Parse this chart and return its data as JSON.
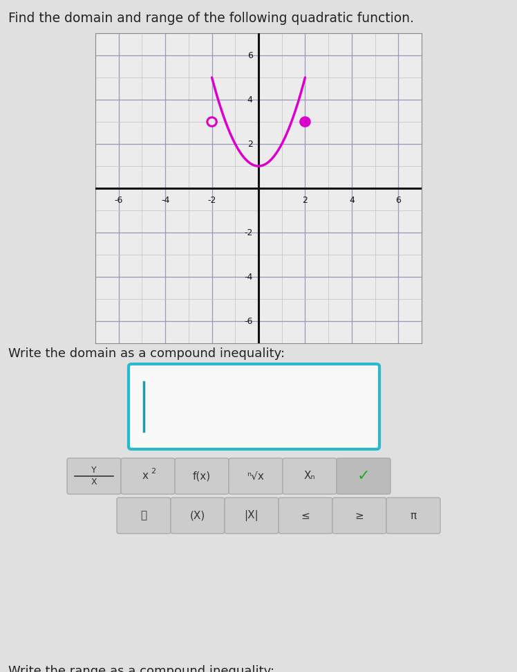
{
  "title": "Find the domain and range of the following quadratic function.",
  "title_fontsize": 13.5,
  "title_color": "#222222",
  "bg_color": "#e0e0e0",
  "graph_bg_color": "#ececec",
  "grid_minor_color": "#c0c0c0",
  "grid_major_color": "#9999bb",
  "axis_color": "#111111",
  "curve_color": "#dd00cc",
  "curve_linewidth": 2.5,
  "open_circle": [
    -2,
    3
  ],
  "closed_circle": [
    2,
    3
  ],
  "vertex_x": 0,
  "vertex_y": 1,
  "x_range": [
    -7,
    7
  ],
  "y_range": [
    -7,
    7
  ],
  "x_ticks": [
    -6,
    -4,
    -2,
    2,
    4,
    6
  ],
  "y_ticks": [
    -6,
    -4,
    -2,
    2,
    4,
    6
  ],
  "domain_label": "Write the domain as a compound inequality:",
  "range_label": "Write the range as a compound inequality:",
  "input_box_color": "#29b8cc",
  "input_box_bg": "#f8f8f8",
  "cursor_color": "#2299aa",
  "button_bg": "#cccccc",
  "check_bg": "#bbbbbb",
  "check_color": "#22aa22",
  "button_edge": "#bbbbbb",
  "label_fontsize": 13
}
